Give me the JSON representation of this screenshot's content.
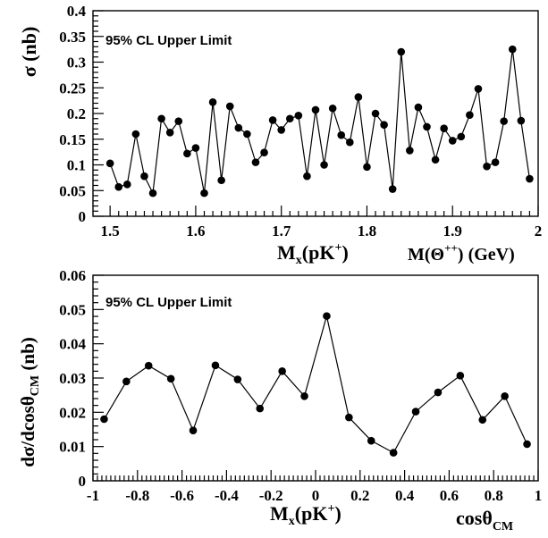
{
  "chart_data": [
    {
      "type": "line",
      "annotation": "95% CL Upper Limit",
      "ylabel": "σ (nb)",
      "xlabel_main": "M",
      "xlabel_sub": "x",
      "xlabel_paren": "(pK",
      "xlabel_sup": "+",
      "xlabel_close": ")",
      "xlabel2_main": "M(Θ",
      "xlabel2_sup": "++",
      "xlabel2_close": ") (GeV)",
      "xlim": [
        1.48,
        2.0
      ],
      "ylim": [
        0,
        0.4
      ],
      "xticks": [
        1.5,
        1.6,
        1.7,
        1.8,
        1.9,
        2.0
      ],
      "xtick_labels": [
        "1.5",
        "1.6",
        "1.7",
        "1.8",
        "1.9",
        "2"
      ],
      "yticks": [
        0,
        0.05,
        0.1,
        0.15,
        0.2,
        0.25,
        0.3,
        0.35,
        0.4
      ],
      "ytick_labels": [
        "0",
        "0.05",
        "0.1",
        "0.15",
        "0.2",
        "0.25",
        "0.3",
        "0.35",
        "0.4"
      ],
      "x": [
        1.5,
        1.51,
        1.52,
        1.53,
        1.54,
        1.55,
        1.56,
        1.57,
        1.58,
        1.59,
        1.6,
        1.61,
        1.62,
        1.63,
        1.64,
        1.65,
        1.66,
        1.67,
        1.68,
        1.69,
        1.7,
        1.71,
        1.72,
        1.73,
        1.74,
        1.75,
        1.76,
        1.77,
        1.78,
        1.79,
        1.8,
        1.81,
        1.82,
        1.83,
        1.84,
        1.85,
        1.86,
        1.87,
        1.88,
        1.89,
        1.9,
        1.91,
        1.92,
        1.93,
        1.94,
        1.95,
        1.96,
        1.97,
        1.98,
        1.99
      ],
      "y": [
        0.103,
        0.057,
        0.062,
        0.16,
        0.078,
        0.045,
        0.19,
        0.163,
        0.185,
        0.122,
        0.133,
        0.045,
        0.222,
        0.07,
        0.214,
        0.172,
        0.16,
        0.105,
        0.124,
        0.187,
        0.168,
        0.19,
        0.196,
        0.078,
        0.207,
        0.1,
        0.21,
        0.158,
        0.144,
        0.232,
        0.096,
        0.2,
        0.178,
        0.053,
        0.32,
        0.128,
        0.212,
        0.174,
        0.11,
        0.171,
        0.147,
        0.155,
        0.197,
        0.248,
        0.097,
        0.105,
        0.185,
        0.325,
        0.186,
        0.073
      ]
    },
    {
      "type": "line",
      "annotation": "95% CL Upper Limit",
      "ylabel_main": "dσ/dcosθ",
      "ylabel_sub": "CM",
      "ylabel_unit": " (nb)",
      "xlabel_main": "M",
      "xlabel_sub": "x",
      "xlabel_paren": "(pK",
      "xlabel_sup": "+",
      "xlabel_close": ")",
      "xlabel2_main": "cosθ",
      "xlabel2_sub": "CM",
      "xlim": [
        -1,
        1
      ],
      "ylim": [
        0,
        0.06
      ],
      "xticks": [
        -1,
        -0.8,
        -0.6,
        -0.4,
        -0.2,
        0,
        0.2,
        0.4,
        0.6,
        0.8,
        1
      ],
      "xtick_labels": [
        "-1",
        "-0.8",
        "-0.6",
        "-0.4",
        "-0.2",
        "0",
        "0.2",
        "0.4",
        "0.6",
        "0.8",
        "1"
      ],
      "yticks": [
        0,
        0.01,
        0.02,
        0.03,
        0.04,
        0.05,
        0.06
      ],
      "ytick_labels": [
        "0",
        "0.01",
        "0.02",
        "0.03",
        "0.04",
        "0.05",
        "0.06"
      ],
      "x": [
        -0.95,
        -0.85,
        -0.75,
        -0.65,
        -0.55,
        -0.45,
        -0.35,
        -0.25,
        -0.15,
        -0.05,
        0.05,
        0.15,
        0.25,
        0.35,
        0.45,
        0.55,
        0.65,
        0.75,
        0.85,
        0.95
      ],
      "y": [
        0.018,
        0.029,
        0.0336,
        0.0298,
        0.0147,
        0.0337,
        0.0296,
        0.0211,
        0.032,
        0.0247,
        0.0481,
        0.0185,
        0.0117,
        0.0082,
        0.0202,
        0.0258,
        0.0307,
        0.0178,
        0.0247,
        0.0107
      ]
    }
  ]
}
